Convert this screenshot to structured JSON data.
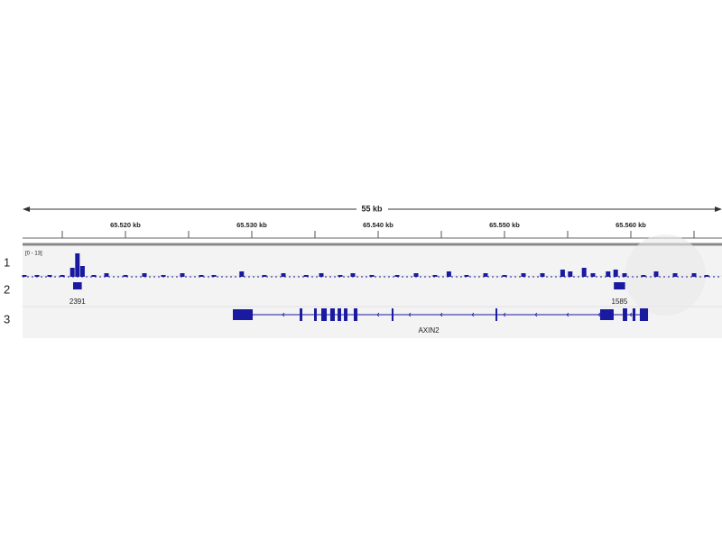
{
  "browser": {
    "span_label": "55 kb",
    "ticks": [
      {
        "value": 65520,
        "label": "65.520 kb"
      },
      {
        "value": 65530,
        "label": "65.530 kb"
      },
      {
        "value": 65540,
        "label": "65.540 kb"
      },
      {
        "value": 65550,
        "label": "65.550 kb"
      },
      {
        "value": 65560,
        "label": "65.560 kb"
      }
    ],
    "minor_ticks": [
      65515,
      65525,
      65535,
      65545,
      65555,
      65565
    ],
    "tracks": [
      {
        "label": "1",
        "range_label": "[0 - 13]",
        "ylim": [
          0,
          13
        ],
        "color": "#1a1aa0",
        "x": [
          65512.0,
          65513.0,
          65514.0,
          65515.0,
          65515.8,
          65516.2,
          65516.6,
          65517.5,
          65518.5,
          65520.0,
          65521.5,
          65523.0,
          65524.5,
          65526.0,
          65527.0,
          65529.2,
          65531.0,
          65532.5,
          65534.3,
          65535.5,
          65537.0,
          65538.0,
          65539.5,
          65541.5,
          65543.0,
          65544.5,
          65545.6,
          65547.0,
          65548.5,
          65550.0,
          65551.5,
          65553.0,
          65554.6,
          65555.2,
          65556.3,
          65557.0,
          65558.2,
          65558.8,
          65559.5,
          65561.0,
          65562.0,
          65563.5,
          65565.0,
          65566.0
        ],
        "values": [
          1,
          1,
          1,
          1,
          5,
          13,
          6,
          1,
          2,
          1,
          2,
          1,
          2,
          1,
          1,
          3,
          1,
          2,
          1,
          2,
          1,
          2,
          1,
          1,
          2,
          1,
          3,
          1,
          2,
          1,
          2,
          2,
          4,
          3,
          5,
          2,
          3,
          4,
          2,
          1,
          3,
          2,
          2,
          1
        ]
      },
      {
        "label": "2",
        "color": "#1a1aa0",
        "features": [
          {
            "start": 65516.0,
            "end": 65516.4,
            "label": "2391"
          },
          {
            "start": 65558.8,
            "end": 65559.4,
            "label": "1585"
          }
        ]
      },
      {
        "label": "3",
        "color": "#1a1aa0",
        "gene": {
          "name": "AXIN2",
          "start": 65528.5,
          "end": 65561.36,
          "exons": [
            [
              65528.5,
              65530.07
            ],
            [
              65533.79,
              65534.0
            ],
            [
              65534.93,
              65535.14
            ],
            [
              65535.5,
              65535.93
            ],
            [
              65536.21,
              65536.57
            ],
            [
              65536.79,
              65537.07
            ],
            [
              65537.29,
              65537.57
            ],
            [
              65538.07,
              65538.36
            ],
            [
              65541.07,
              65541.21
            ],
            [
              65549.29,
              65549.43
            ],
            [
              65557.57,
              65558.64
            ],
            [
              65559.36,
              65559.71
            ],
            [
              65560.14,
              65560.36
            ],
            [
              65560.71,
              65561.36
            ]
          ]
        }
      }
    ]
  }
}
